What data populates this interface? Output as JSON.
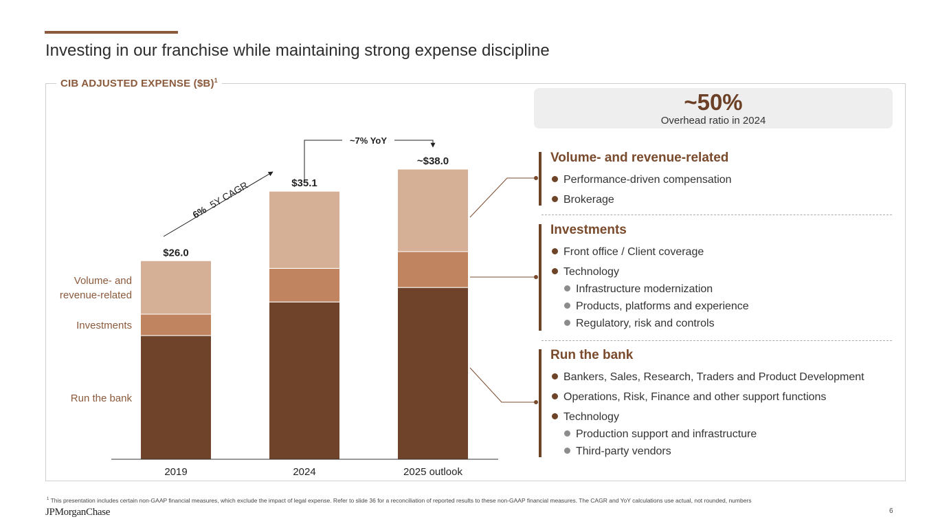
{
  "page": {
    "title": "Investing in our franchise while maintaining strong expense discipline",
    "panel_title": "CIB ADJUSTED EXPENSE ($B)",
    "panel_title_sup": "1",
    "page_number": "6",
    "logo": "JPMorganChase"
  },
  "overhead": {
    "value": "~50%",
    "caption": "Overhead ratio in 2024"
  },
  "chart_data": {
    "type": "bar",
    "stacked": true,
    "title": "CIB ADJUSTED EXPENSE ($B)",
    "categories": [
      "2019",
      "2024",
      "2025 outlook"
    ],
    "totals": [
      "$26.0",
      "$35.1",
      "~$38.0"
    ],
    "total_values": [
      26.0,
      35.1,
      38.0
    ],
    "series": [
      {
        "name": "Run the bank",
        "values": [
          16.2,
          20.6,
          22.5
        ],
        "color": "#6e432a"
      },
      {
        "name": "Investments",
        "values": [
          2.8,
          4.4,
          4.7
        ],
        "color": "#c08461"
      },
      {
        "name": "Volume- and revenue-related",
        "values": [
          7.0,
          10.1,
          10.8
        ],
        "color": "#d5b097"
      }
    ],
    "series_labels": {
      "volume_line1": "Volume- and",
      "volume_line2": "revenue-related",
      "investments": "Investments",
      "run_the_bank": "Run the bank"
    },
    "annotations": {
      "cagr_value": "6%",
      "cagr_label": "5Y CAGR",
      "yoy": "~7% YoY"
    },
    "ylim": [
      0,
      38.0
    ],
    "grid": false,
    "legend": "left-inline"
  },
  "categories": {
    "volume": {
      "title": "Volume- and revenue-related",
      "items": [
        "Performance-driven compensation",
        "Brokerage"
      ]
    },
    "investments": {
      "title": "Investments",
      "items": [
        "Front office / Client coverage",
        "Technology"
      ],
      "subitems": [
        "Infrastructure modernization",
        "Products, platforms and experience",
        "Regulatory, risk and controls"
      ]
    },
    "run_the_bank": {
      "title": "Run the bank",
      "items": [
        "Bankers, Sales, Research, Traders and Product Development",
        "Operations, Risk, Finance and other support functions",
        "Technology"
      ],
      "subitems": [
        "Production support and infrastructure",
        "Third-party vendors"
      ]
    }
  },
  "footnote": {
    "mark": "1",
    "text": "This presentation includes certain non-GAAP financial measures, which exclude the impact of legal expense. Refer to slide 36 for a reconciliation of reported results to these non-GAAP financial measures. The CAGR and YoY calculations use actual, not rounded, numbers"
  }
}
